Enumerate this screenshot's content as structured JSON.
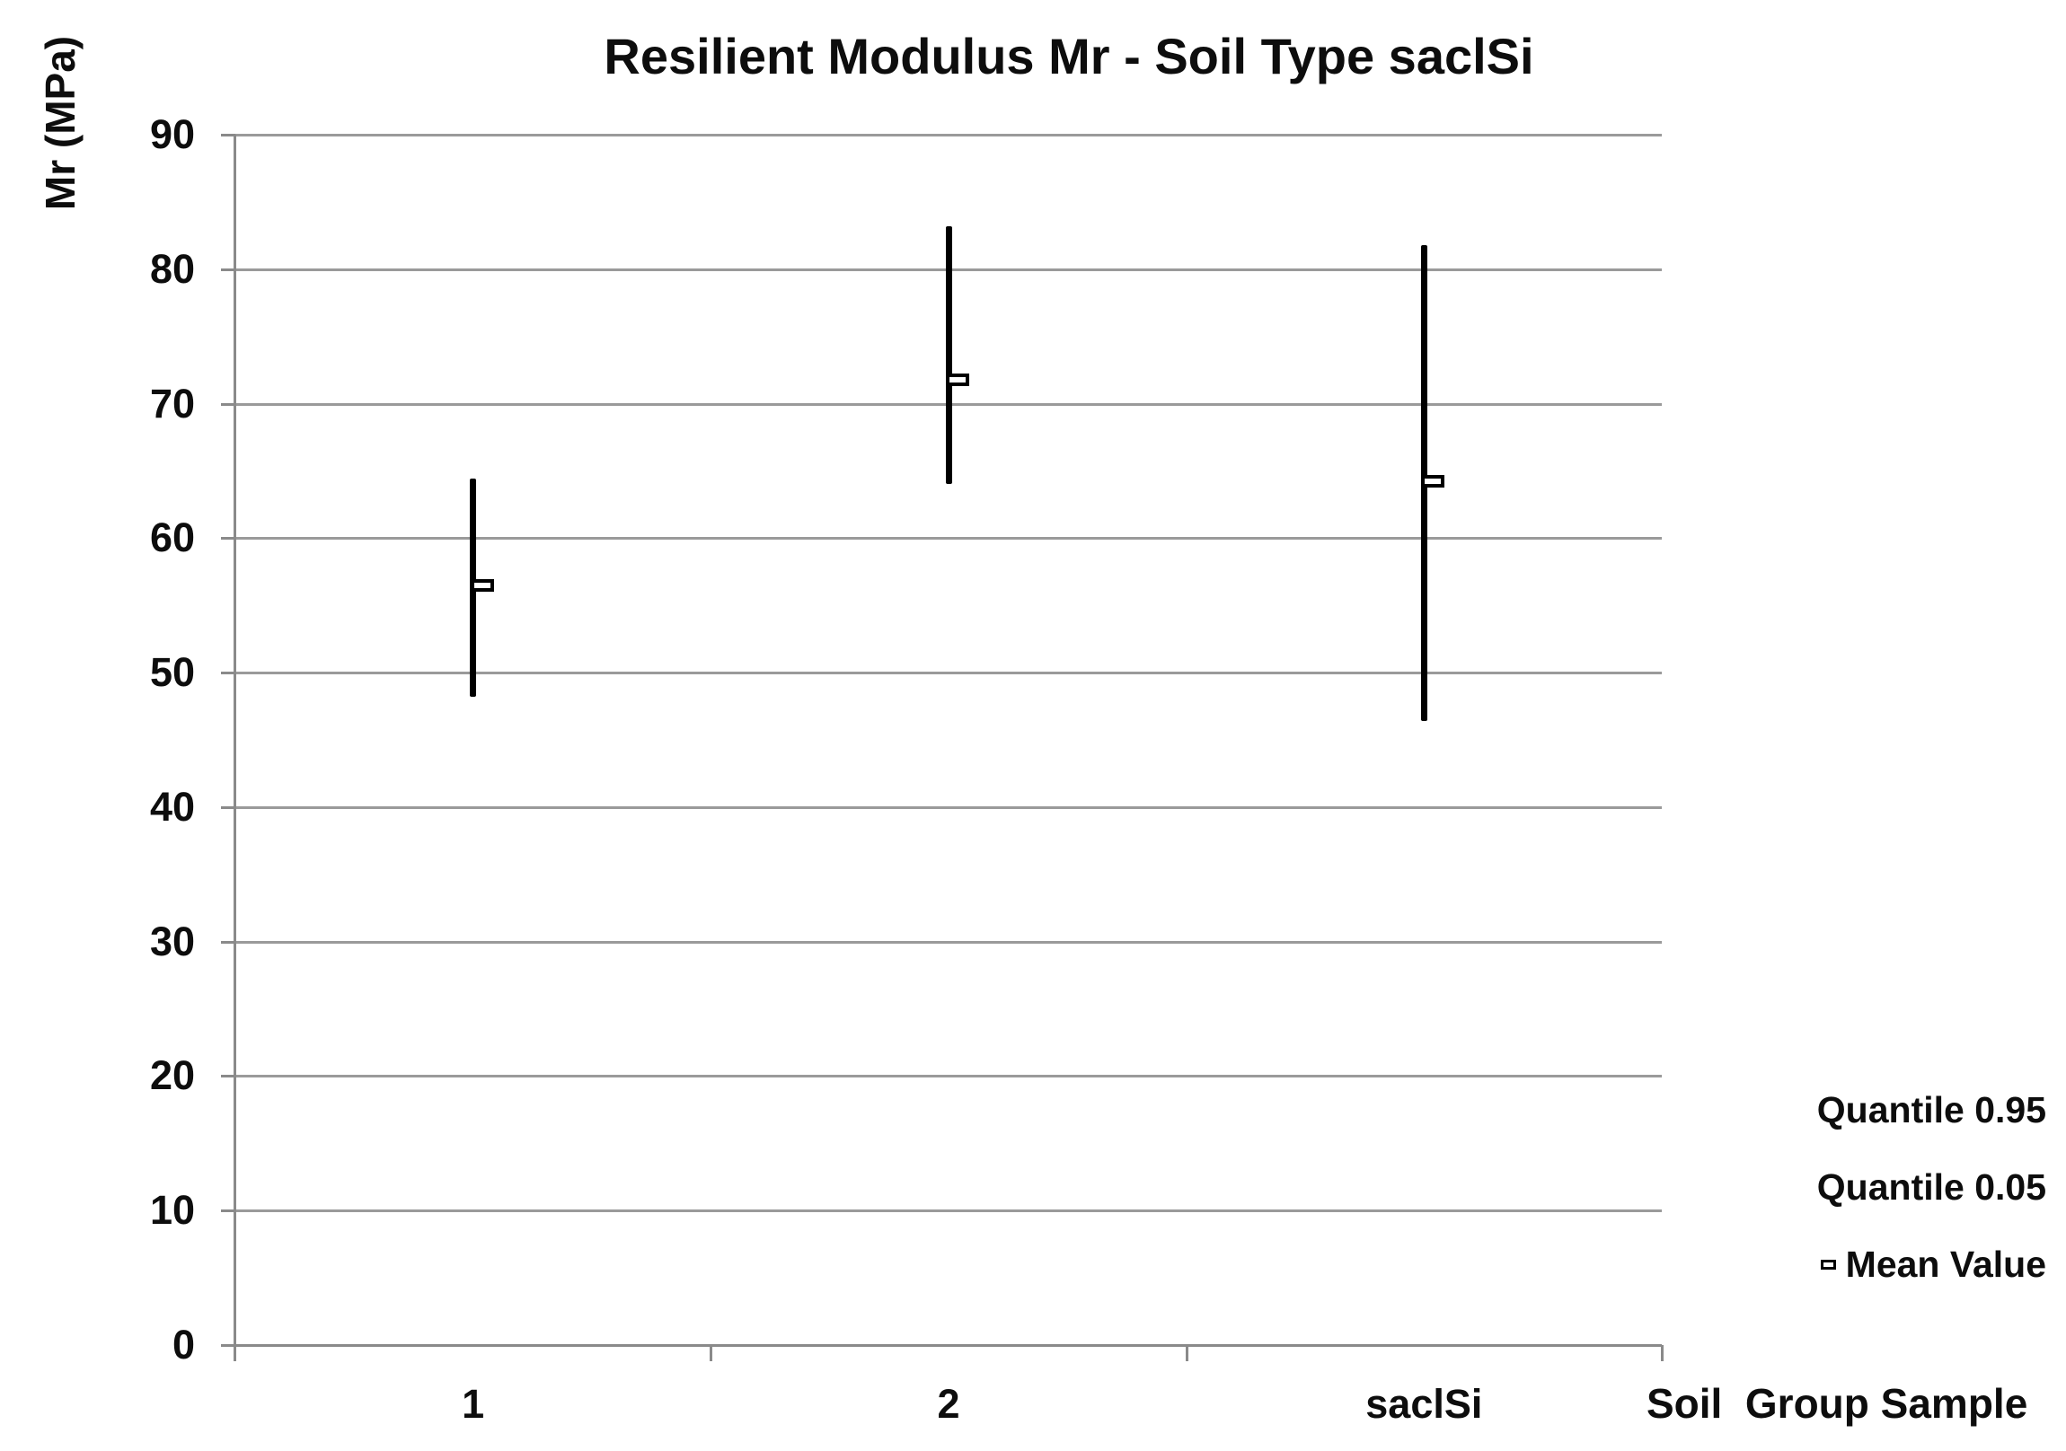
{
  "chart": {
    "title": "Resilient Modulus Mr - Soil Type saclSi",
    "y_axis_label": "Mr (MPa)",
    "x_axis_label": "Soil  Group Sample"
  },
  "legend": {
    "items": [
      {
        "label": "Quantile 0.95",
        "marker": "none"
      },
      {
        "label": "Quantile 0.05",
        "marker": "none"
      },
      {
        "label": "Mean Value",
        "marker": "hollow-square"
      }
    ]
  },
  "colors": {
    "series_line": "#000000",
    "gridline": "#9a9a9a",
    "axis": "#8a8a8a",
    "text": "#0d0d0d",
    "background": "#ffffff"
  },
  "chart_data": {
    "type": "quantile-range",
    "title": "Resilient Modulus Mr - Soil Type saclSi",
    "xlabel": "Soil  Group Sample",
    "ylabel": "Mr (MPa)",
    "categories": [
      "1",
      "2",
      "saclSi"
    ],
    "series": [
      {
        "name": "Quantile 0.95",
        "values": [
          64.4,
          83.2,
          81.8
        ]
      },
      {
        "name": "Quantile 0.05",
        "values": [
          48.2,
          64.0,
          46.4
        ]
      },
      {
        "name": "Mean Value",
        "values": [
          56.5,
          71.8,
          64.2
        ]
      }
    ],
    "ylim": [
      0,
      90
    ],
    "yticks": [
      0,
      10,
      20,
      30,
      40,
      50,
      60,
      70,
      80,
      90
    ],
    "grid": true,
    "legend_position": "bottom-right"
  }
}
